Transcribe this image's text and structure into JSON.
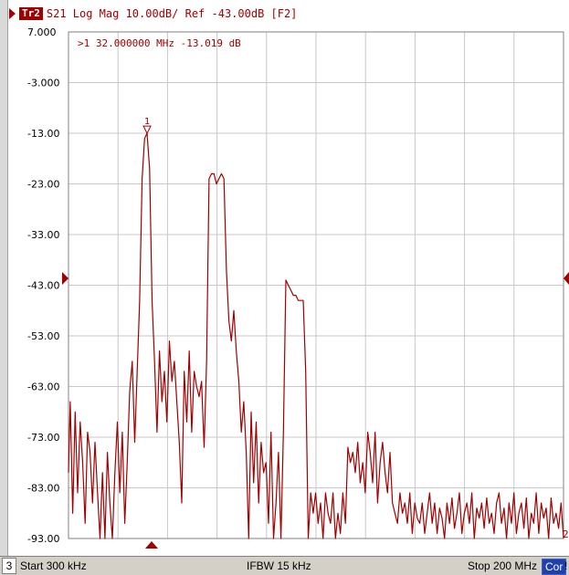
{
  "header": {
    "trace_label": "Tr2",
    "trace_info": "S21 Log Mag 10.00dB/ Ref -43.00dB [F2]"
  },
  "marker_readout": ">1  32.000000 MHz -13.019 dB",
  "status": {
    "channel": "3",
    "start": "Start 300 kHz",
    "ifbw": "IFBW 15 kHz",
    "stop": "Stop 200 MHz",
    "correction": "Cor",
    "extra": "!"
  },
  "colors": {
    "trace": "#a00000",
    "grid": "#c8c8c8",
    "axis_text": "#000000",
    "status_bg": "#d4d0c8",
    "cor_bg": "#1f3fae"
  },
  "chart_data": {
    "type": "line",
    "title": "",
    "xlabel": "",
    "ylabel": "",
    "x_unit": "MHz",
    "xlim": [
      0.3,
      200
    ],
    "ylim": [
      -93,
      7
    ],
    "y_ticks": [
      "7.000",
      "-3.000",
      "-13.00",
      "-23.00",
      "-33.00",
      "-43.00",
      "-53.00",
      "-63.00",
      "-73.00",
      "-83.00",
      "-93.00"
    ],
    "reference_level_db": -43,
    "grid": true,
    "marker": {
      "number": "1",
      "x": 32.0,
      "y": -13.019
    },
    "end_label": "2",
    "series": [
      {
        "x": [
          0.3,
          1,
          2,
          3,
          4,
          5,
          6,
          7,
          8,
          9,
          10,
          11,
          12,
          13,
          14,
          15,
          16,
          17,
          18,
          19,
          20,
          21,
          22,
          23,
          24,
          25,
          26,
          27,
          28,
          29,
          30,
          31,
          32,
          33,
          34,
          35,
          36,
          37,
          38,
          39,
          40,
          41,
          42,
          43,
          44,
          45,
          46,
          47,
          48,
          49,
          50,
          51,
          52,
          53,
          54,
          55,
          56,
          57,
          58,
          59,
          60,
          61,
          62,
          63,
          64,
          65,
          66,
          67,
          68,
          69,
          70,
          71,
          72,
          73,
          74,
          75,
          76,
          77,
          78,
          79,
          80,
          81,
          82,
          83,
          84,
          85,
          86,
          87,
          88,
          89,
          90,
          91,
          92,
          93,
          94,
          95,
          96,
          97,
          98,
          99,
          100,
          101,
          102,
          103,
          104,
          105,
          106,
          107,
          108,
          109,
          110,
          111,
          112,
          113,
          114,
          115,
          116,
          117,
          118,
          119,
          120,
          121,
          122,
          123,
          124,
          125,
          126,
          127,
          128,
          129,
          130,
          131,
          132,
          133,
          134,
          135,
          136,
          137,
          138,
          139,
          140,
          141,
          142,
          143,
          144,
          145,
          146,
          147,
          148,
          149,
          150,
          151,
          152,
          153,
          154,
          155,
          156,
          157,
          158,
          159,
          160,
          161,
          162,
          163,
          164,
          165,
          166,
          167,
          168,
          169,
          170,
          171,
          172,
          173,
          174,
          175,
          176,
          177,
          178,
          179,
          180,
          181,
          182,
          183,
          184,
          185,
          186,
          187,
          188,
          189,
          190,
          191,
          192,
          193,
          194,
          195,
          196,
          197,
          198,
          199,
          200
        ],
        "y": [
          -80,
          -66,
          -88,
          -68,
          -84,
          -70,
          -78,
          -90,
          -72,
          -76,
          -86,
          -74,
          -84,
          -93,
          -80,
          -93,
          -76,
          -86,
          -93,
          -80,
          -70,
          -84,
          -72,
          -90,
          -78,
          -64,
          -58,
          -74,
          -60,
          -46,
          -22,
          -14,
          -13,
          -20,
          -46,
          -58,
          -72,
          -56,
          -66,
          -60,
          -70,
          -54,
          -62,
          -58,
          -66,
          -74,
          -86,
          -60,
          -70,
          -56,
          -72,
          -60,
          -63,
          -65,
          -62,
          -75,
          -58,
          -22,
          -21,
          -21,
          -23,
          -22,
          -21,
          -22,
          -40,
          -50,
          -54,
          -48,
          -56,
          -62,
          -72,
          -66,
          -76,
          -93,
          -68,
          -82,
          -70,
          -86,
          -74,
          -80,
          -78,
          -90,
          -72,
          -93,
          -86,
          -76,
          -93,
          -72,
          -42,
          -43,
          -44,
          -45,
          -45,
          -46,
          -46,
          -46,
          -60,
          -93,
          -84,
          -88,
          -84,
          -90,
          -86,
          -93,
          -84,
          -88,
          -90,
          -84,
          -93,
          -88,
          -92,
          -84,
          -90,
          -75,
          -78,
          -76,
          -80,
          -74,
          -82,
          -78,
          -84,
          -72,
          -76,
          -82,
          -72,
          -86,
          -78,
          -74,
          -80,
          -84,
          -76,
          -86,
          -88,
          -90,
          -84,
          -88,
          -86,
          -90,
          -84,
          -92,
          -86,
          -89,
          -90,
          -86,
          -92,
          -88,
          -84,
          -90,
          -86,
          -92,
          -87,
          -89,
          -93,
          -86,
          -90,
          -85,
          -91,
          -88,
          -84,
          -92,
          -88,
          -86,
          -90,
          -84,
          -93,
          -87,
          -89,
          -86,
          -91,
          -85,
          -90,
          -88,
          -92,
          -86,
          -84,
          -90,
          -87,
          -93,
          -86,
          -90,
          -84,
          -92,
          -88,
          -86,
          -91,
          -85,
          -93,
          -88,
          -90,
          -84,
          -92,
          -86,
          -89,
          -87,
          -93,
          -85,
          -90,
          -88,
          -91,
          -86,
          -93
        ]
      }
    ]
  }
}
